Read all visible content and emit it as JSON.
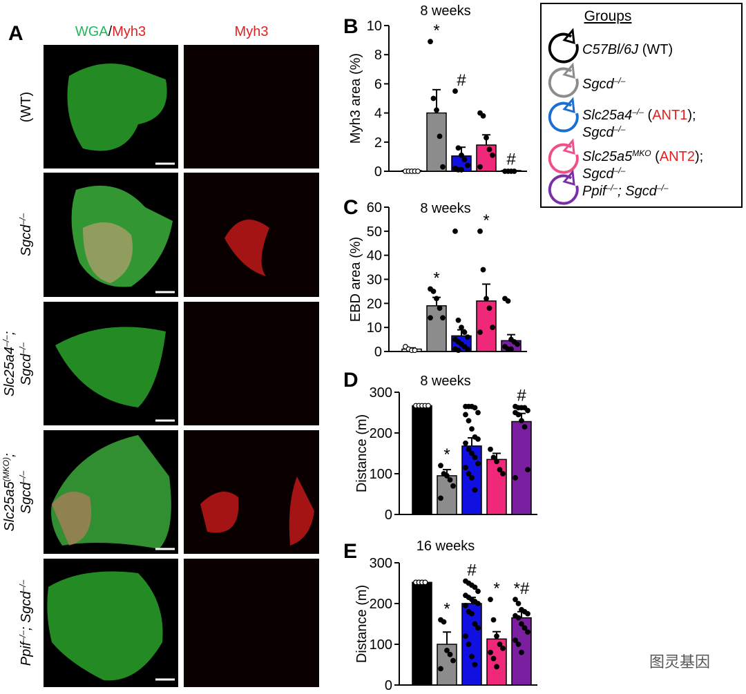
{
  "panel_a": {
    "letter": "A",
    "columns": [
      [
        {
          "text": "WGA",
          "color": "#1fb85a"
        },
        {
          "text": "/",
          "color": "#000000"
        },
        {
          "text": "Myh3",
          "color": "#e02020"
        }
      ],
      [
        {
          "text": "Myh3",
          "color": "#e02020"
        }
      ]
    ],
    "rows": [
      [
        [
          {
            "text": "(WT)"
          }
        ]
      ],
      [
        [
          {
            "text": "Sgcd",
            "italic": true
          },
          {
            "text": "–/–",
            "italic": true,
            "sup": true
          }
        ]
      ],
      [
        [
          {
            "text": "Slc25a4",
            "italic": true
          },
          {
            "text": "–/–",
            "italic": true,
            "sup": true
          },
          {
            "text": ";",
            "italic": true
          }
        ],
        [
          {
            "text": "Sgcd",
            "italic": true
          },
          {
            "text": "–/–",
            "italic": true,
            "sup": true
          }
        ]
      ],
      [
        [
          {
            "text": "Slc25a5",
            "italic": true
          },
          {
            "text": "(MKO)",
            "italic": true,
            "sup": true
          },
          {
            "text": ";",
            "italic": true
          }
        ],
        [
          {
            "text": "Sgcd",
            "italic": true
          },
          {
            "text": "–/–",
            "italic": true,
            "sup": true
          }
        ]
      ],
      [
        [
          {
            "text": "Ppif",
            "italic": true
          },
          {
            "text": "–/–",
            "italic": true,
            "sup": true
          },
          {
            "text": "; Sgcd",
            "italic": true
          },
          {
            "text": "–/–",
            "italic": true,
            "sup": true
          }
        ]
      ]
    ]
  },
  "legend": {
    "title": "Groups",
    "entries": [
      {
        "color": "#000000",
        "lines": [
          [
            {
              "text": "C57Bl/6J",
              "italic": true
            },
            {
              "text": " (WT)"
            }
          ]
        ]
      },
      {
        "color": "#8c8c8c",
        "lines": [
          [
            {
              "text": "Sgcd",
              "italic": true
            },
            {
              "text": "–/–",
              "italic": true,
              "sup": true
            }
          ]
        ]
      },
      {
        "color": "#1a6fd0",
        "lines": [
          [
            {
              "text": "Slc25a4",
              "italic": true
            },
            {
              "text": "–/–",
              "italic": true,
              "sup": true
            },
            {
              "text": " ("
            },
            {
              "text": "ANT1",
              "color": "#e02020"
            },
            {
              "text": ");"
            }
          ],
          [
            {
              "text": "Sgcd",
              "italic": true
            },
            {
              "text": "–/–",
              "italic": true,
              "sup": true
            }
          ]
        ]
      },
      {
        "color": "#f0508a",
        "lines": [
          [
            {
              "text": "Slc25a5",
              "italic": true
            },
            {
              "text": "MKO",
              "italic": true,
              "sup": true
            },
            {
              "text": " ("
            },
            {
              "text": "ANT2",
              "color": "#e02020"
            },
            {
              "text": ");"
            }
          ],
          [
            {
              "text": "Sgcd",
              "italic": true
            },
            {
              "text": "–/–",
              "italic": true,
              "sup": true
            }
          ]
        ]
      },
      {
        "color": "#7a2fa8",
        "lines": [
          [
            {
              "text": "Ppif",
              "italic": true
            },
            {
              "text": "–/–",
              "italic": true,
              "sup": true
            },
            {
              "text": "; Sgcd",
              "italic": true
            },
            {
              "text": "–/–",
              "italic": true,
              "sup": true
            }
          ]
        ]
      }
    ]
  },
  "watermark": "图灵基因",
  "chart_data": [
    {
      "type": "bar",
      "letter": "B",
      "title": "8 weeks",
      "y_label": "Myh3 area (%)",
      "ylim": [
        0,
        10
      ],
      "yticks": [
        0,
        2,
        4,
        6,
        8,
        10
      ],
      "colors": [
        "#ffffff",
        "#8c8c8c",
        "#1010e0",
        "#f0287a",
        "#7a1fa0"
      ],
      "values": [
        0.05,
        4.0,
        1.05,
        1.8,
        0.05
      ],
      "errors": [
        0.02,
        1.6,
        0.6,
        0.7,
        0.02
      ],
      "points": [
        [
          0,
          0,
          0,
          0,
          0
        ],
        [
          8.9,
          5.0,
          4.2,
          2.4,
          0.3
        ],
        [
          5.5,
          1.6,
          1.1,
          0.8,
          0.4,
          0.2,
          0.1,
          0.1
        ],
        [
          4.0,
          3.8,
          2.3,
          1.5,
          1.1,
          0.3
        ],
        [
          0,
          0,
          0,
          0
        ]
      ],
      "annotations": [
        {
          "category": 1,
          "text": "*"
        },
        {
          "category": 2,
          "text": "#"
        },
        {
          "category": 4,
          "text": "#"
        }
      ]
    },
    {
      "type": "bar",
      "letter": "C",
      "title": "8 weeks",
      "y_label": "EBD area (%)",
      "ylim": [
        0,
        60
      ],
      "yticks": [
        0,
        10,
        20,
        30,
        40,
        50,
        60
      ],
      "colors": [
        "#ffffff",
        "#8c8c8c",
        "#1010e0",
        "#f0287a",
        "#7a1fa0"
      ],
      "values": [
        1,
        19,
        6.5,
        21,
        4.5
      ],
      "errors": [
        0.5,
        3.5,
        2.5,
        7,
        2.5
      ],
      "points": [
        [
          2,
          1,
          0.5,
          0.5
        ],
        [
          26,
          25,
          22,
          18,
          14,
          14
        ],
        [
          50,
          13,
          10,
          8,
          6,
          5,
          4,
          3,
          2,
          1,
          1,
          0.5
        ],
        [
          50,
          34,
          22,
          18,
          10,
          8
        ],
        [
          22,
          21,
          5,
          4,
          3,
          2,
          1,
          1
        ]
      ],
      "annotations": [
        {
          "category": 1,
          "text": "*"
        },
        {
          "category": 3,
          "text": "*"
        }
      ]
    },
    {
      "type": "bar",
      "letter": "D",
      "title": "8 weeks",
      "y_label": "Distance (m)",
      "ylim": [
        0,
        300
      ],
      "yticks": [
        0,
        100,
        200,
        300
      ],
      "colors": [
        "#000000",
        "#8c8c8c",
        "#1010e0",
        "#f0287a",
        "#7a1fa0"
      ],
      "values": [
        267,
        95,
        168,
        135,
        228
      ],
      "errors": [
        2,
        15,
        20,
        15,
        20
      ],
      "points": [
        [
          267,
          267,
          267,
          267,
          267
        ],
        [
          120,
          100,
          95,
          85,
          70,
          40
        ],
        [
          265,
          265,
          265,
          262,
          250,
          245,
          230,
          210,
          190,
          185,
          175,
          160,
          150,
          140,
          125,
          115,
          100,
          90,
          60
        ],
        [
          160,
          140,
          130,
          110,
          100
        ],
        [
          265,
          262,
          262,
          262,
          255,
          250,
          245,
          230,
          215,
          110,
          90
        ]
      ],
      "annotations": [
        {
          "category": 1,
          "text": "*"
        },
        {
          "category": 4,
          "text": "#"
        }
      ]
    },
    {
      "type": "bar",
      "letter": "E",
      "title": "16 weeks",
      "y_label": "Distance (m)",
      "ylim": [
        0,
        300
      ],
      "yticks": [
        0,
        100,
        200,
        300
      ],
      "colors": [
        "#000000",
        "#8c8c8c",
        "#1010e0",
        "#f0287a",
        "#7a1fa0"
      ],
      "values": [
        252,
        100,
        200,
        113,
        165
      ],
      "errors": [
        2,
        30,
        15,
        18,
        15
      ],
      "points": [
        [
          252,
          252,
          252,
          252
        ],
        [
          160,
          155,
          85,
          75,
          60,
          40
        ],
        [
          255,
          250,
          245,
          240,
          230,
          220,
          215,
          210,
          205,
          200,
          195,
          180,
          175,
          150,
          140,
          120,
          100,
          70,
          50
        ],
        [
          210,
          160,
          120,
          100,
          90,
          80,
          65,
          45
        ],
        [
          210,
          200,
          185,
          180,
          175,
          170,
          165,
          150,
          140,
          130,
          110,
          100,
          80
        ]
      ],
      "annotations": [
        {
          "category": 1,
          "text": "*"
        },
        {
          "category": 2,
          "text": "#"
        },
        {
          "category": 3,
          "text": "*"
        },
        {
          "category": 4,
          "text": "*#"
        }
      ]
    }
  ]
}
